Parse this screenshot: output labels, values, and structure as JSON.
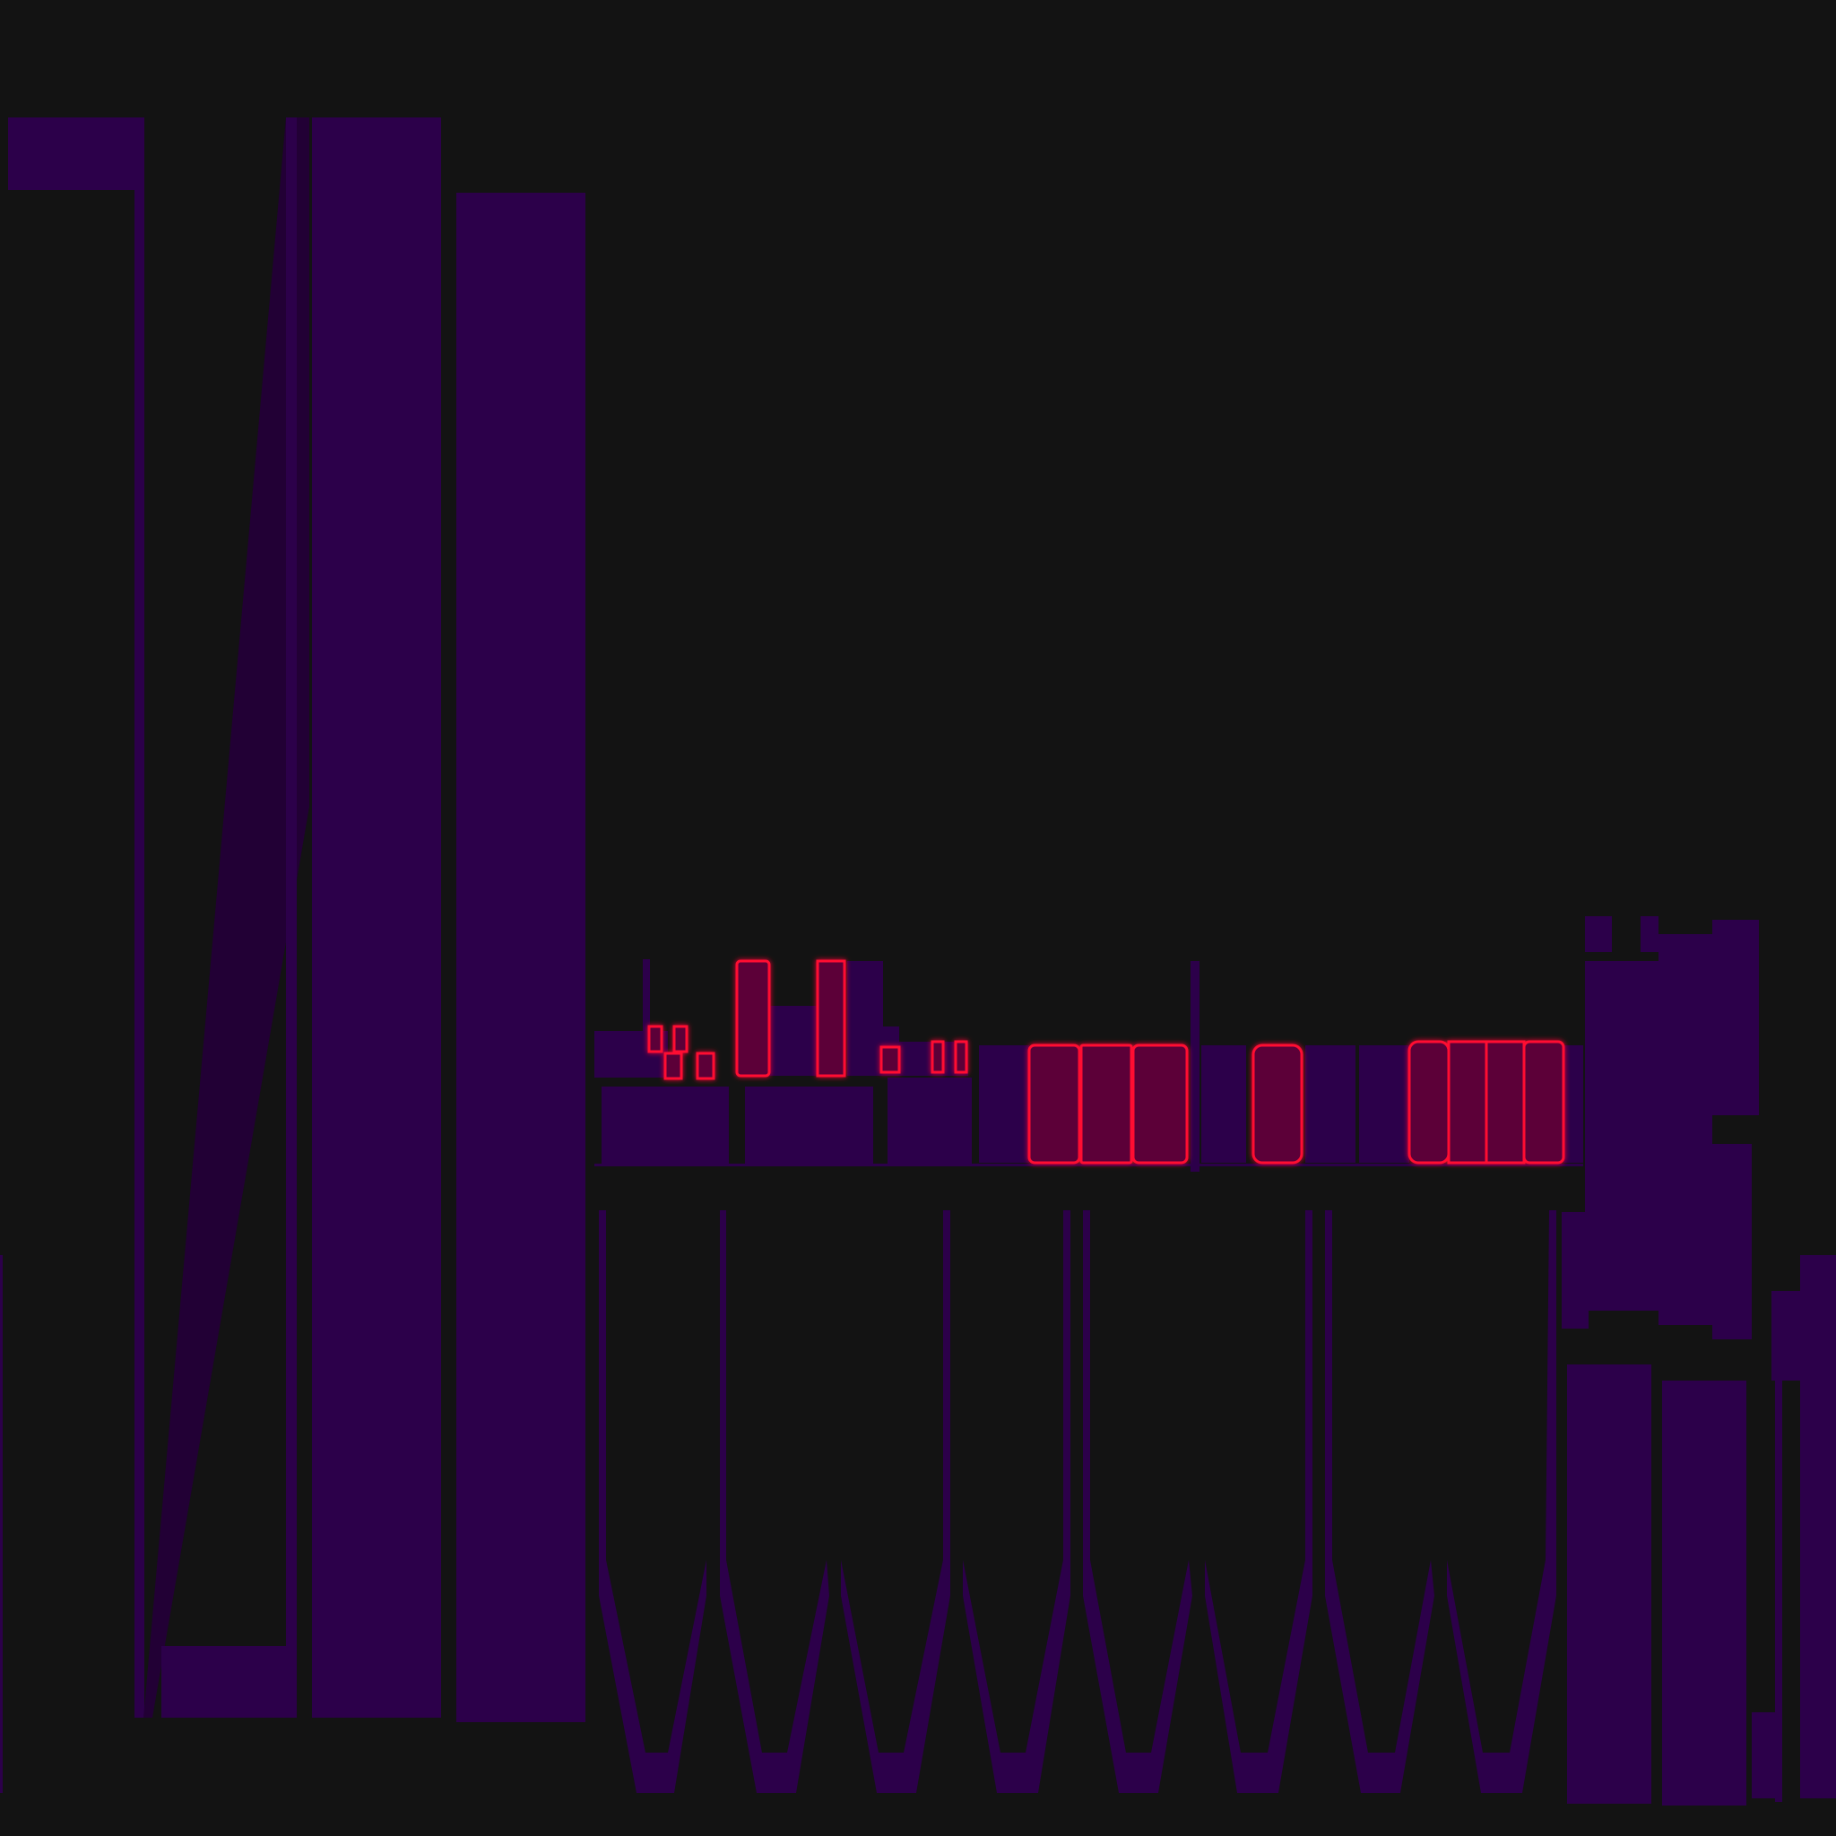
{
  "colors": {
    "background": "#131313",
    "primary_shape": "#2c004a",
    "dim_shape": "#220035",
    "highlight_fill": "#5c0038",
    "highlight_glow": "#ff1030"
  }
}
